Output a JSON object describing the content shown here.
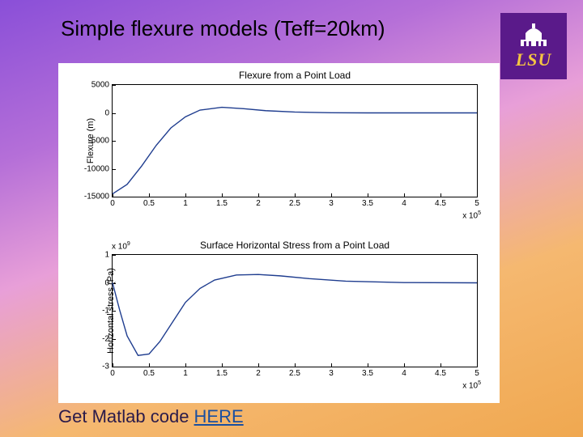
{
  "slide": {
    "title": "Simple flexure models (Teff=20km)",
    "footer_prefix": "Get Matlab code ",
    "footer_link": "HERE"
  },
  "logo": {
    "text": "LSU",
    "bg": "#5a1a8a",
    "fg": "#f5c542"
  },
  "charts": {
    "background": "#ffffff",
    "line_color": "#1f3d8f",
    "line_width": 1.4,
    "axes_color": "#000000",
    "tick_fontsize": 10,
    "label_fontsize": 11,
    "title_fontsize": 12,
    "top": {
      "title": "Flexure from a Point Load",
      "ylabel": "Flexure (m)",
      "ylim": [
        -15000,
        5000
      ],
      "yticks": [
        -15000,
        -10000,
        -5000,
        0,
        5000
      ],
      "xlim": [
        0,
        5
      ],
      "xticks": [
        0,
        0.5,
        1,
        1.5,
        2,
        2.5,
        3,
        3.5,
        4,
        4.5,
        5
      ],
      "x_multiplier": "x 10^5",
      "series_x": [
        0,
        0.2,
        0.4,
        0.6,
        0.8,
        1.0,
        1.2,
        1.5,
        1.8,
        2.1,
        2.5,
        3.0,
        3.5,
        4.0,
        4.5,
        5.0
      ],
      "series_y": [
        -14500,
        -12800,
        -9500,
        -5800,
        -2700,
        -700,
        500,
        1000,
        750,
        400,
        150,
        30,
        0,
        0,
        0,
        0
      ]
    },
    "bottom": {
      "title": "Surface Horizontal Stress from a Point Load",
      "ylabel": "Horizontal stress (Pa)",
      "ylim": [
        -3,
        1
      ],
      "yticks": [
        -3,
        -2,
        -1,
        0,
        1
      ],
      "xlim": [
        0,
        5
      ],
      "xticks": [
        0,
        0.5,
        1,
        1.5,
        2,
        2.5,
        3,
        3.5,
        4,
        4.5,
        5
      ],
      "x_multiplier": "x 10^5",
      "y_multiplier": "x 10^9",
      "series_x": [
        0,
        0.1,
        0.2,
        0.35,
        0.5,
        0.65,
        0.8,
        1.0,
        1.2,
        1.4,
        1.7,
        2.0,
        2.3,
        2.7,
        3.2,
        4.0,
        5.0
      ],
      "series_y": [
        0,
        -1.0,
        -1.9,
        -2.6,
        -2.55,
        -2.1,
        -1.5,
        -0.7,
        -0.2,
        0.1,
        0.28,
        0.3,
        0.25,
        0.15,
        0.06,
        0.01,
        0
      ]
    }
  }
}
